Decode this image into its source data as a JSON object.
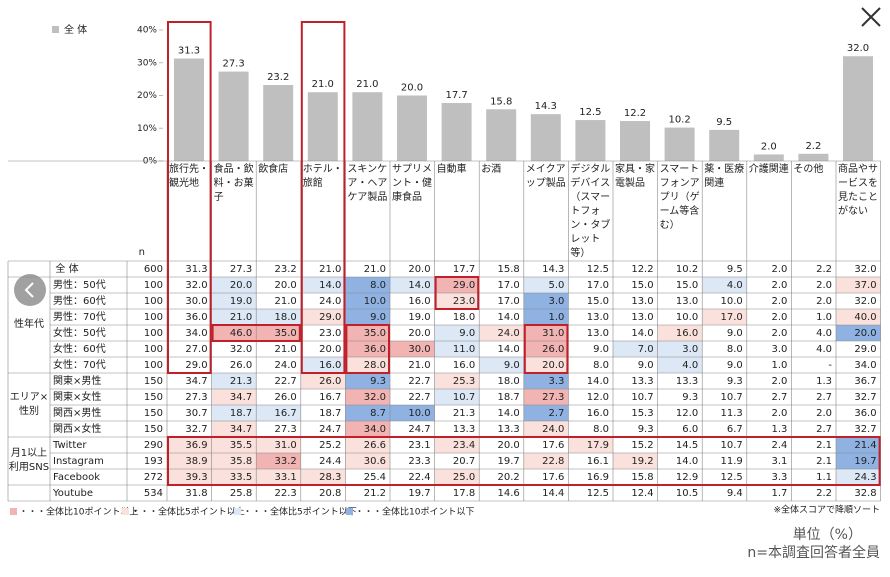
{
  "chart_data": {
    "type": "bar",
    "categories": [
      "旅行先・観光地",
      "食品・飲料・お菓子",
      "飲食店",
      "ホテル・旅館",
      "スキンケア・ヘアケア製品",
      "サプリメント・健康食品",
      "自動車",
      "お酒",
      "メイクアップ製品",
      "デジタルデバイス（スマートフォン・タブレット等）",
      "家具・家電製品",
      "スマートフォンアプリ（ゲーム等含む）",
      "薬・医療関連",
      "介護関連",
      "その他",
      "商品やサービスを見たことがない"
    ],
    "series": [
      {
        "name": "全 体",
        "color": "#bfbfbf",
        "values": [
          31.3,
          27.3,
          23.2,
          21,
          21,
          20,
          17.7,
          15.8,
          14.3,
          12.5,
          12.2,
          10.2,
          9.5,
          2,
          2.2,
          32
        ],
        "value_labels": [
          "31.3",
          "27.3",
          "23.2",
          "21.0",
          "21.0",
          "20.0",
          "17.7",
          "15.8",
          "14.3",
          "12.5",
          "12.2",
          "10.2",
          "9.5",
          "2.0",
          "2.2",
          "32.0"
        ]
      }
    ],
    "ylim": [
      0,
      40
    ],
    "yticks": [
      {
        "value": 0,
        "label": "0%"
      },
      {
        "value": 10,
        "label": "10%"
      },
      {
        "value": 20,
        "label": "20%"
      },
      {
        "value": 30,
        "label": "30%"
      },
      {
        "value": 40,
        "label": "40%"
      }
    ]
  },
  "table": {
    "n_header": "n",
    "total": {
      "label": "全 体",
      "n": 600,
      "values": [
        "31.3",
        "27.3",
        "23.2",
        "21.0",
        "21.0",
        "20.0",
        "17.7",
        "15.8",
        "14.3",
        "12.5",
        "12.2",
        "10.2",
        "9.5",
        "2.0",
        "2.2",
        "32.0"
      ]
    },
    "groups": [
      {
        "label": "性年代",
        "rows": [
          {
            "label": "男性：50代",
            "n": 100,
            "values": [
              "32.0",
              "20.0",
              "20.0",
              "14.0",
              "8.0",
              "14.0",
              "29.0",
              "17.0",
              "5.0",
              "17.0",
              "15.0",
              "15.0",
              "4.0",
              "2.0",
              "2.0",
              "37.0"
            ]
          },
          {
            "label": "男性：60代",
            "n": 100,
            "values": [
              "30.0",
              "19.0",
              "21.0",
              "24.0",
              "10.0",
              "16.0",
              "23.0",
              "17.0",
              "3.0",
              "15.0",
              "13.0",
              "13.0",
              "10.0",
              "2.0",
              "2.0",
              "32.0"
            ]
          },
          {
            "label": "男性：70代",
            "n": 100,
            "values": [
              "36.0",
              "21.0",
              "18.0",
              "29.0",
              "9.0",
              "19.0",
              "18.0",
              "14.0",
              "1.0",
              "13.0",
              "13.0",
              "10.0",
              "17.0",
              "2.0",
              "1.0",
              "40.0"
            ]
          },
          {
            "label": "女性：50代",
            "n": 100,
            "values": [
              "34.0",
              "46.0",
              "35.0",
              "23.0",
              "35.0",
              "20.0",
              "9.0",
              "24.0",
              "31.0",
              "13.0",
              "14.0",
              "16.0",
              "9.0",
              "2.0",
              "4.0",
              "20.0"
            ]
          },
          {
            "label": "女性：60代",
            "n": 100,
            "values": [
              "27.0",
              "32.0",
              "21.0",
              "20.0",
              "36.0",
              "30.0",
              "11.0",
              "14.0",
              "26.0",
              "9.0",
              "7.0",
              "3.0",
              "8.0",
              "3.0",
              "4.0",
              "29.0"
            ]
          },
          {
            "label": "女性：70代",
            "n": 100,
            "values": [
              "29.0",
              "26.0",
              "24.0",
              "16.0",
              "28.0",
              "21.0",
              "16.0",
              "9.0",
              "20.0",
              "8.0",
              "9.0",
              "4.0",
              "9.0",
              "1.0",
              "-",
              "34.0"
            ]
          }
        ]
      },
      {
        "label": "エリア×性別",
        "rows": [
          {
            "label": "関東×男性",
            "n": 150,
            "values": [
              "34.7",
              "21.3",
              "22.7",
              "26.0",
              "9.3",
              "22.7",
              "25.3",
              "18.0",
              "3.3",
              "14.0",
              "13.3",
              "13.3",
              "9.3",
              "2.0",
              "1.3",
              "36.7"
            ]
          },
          {
            "label": "関東×女性",
            "n": 150,
            "values": [
              "27.3",
              "34.7",
              "26.0",
              "16.7",
              "32.0",
              "22.7",
              "10.7",
              "18.7",
              "27.3",
              "12.0",
              "10.7",
              "9.3",
              "10.7",
              "2.7",
              "2.7",
              "32.7"
            ]
          },
          {
            "label": "関西×男性",
            "n": 150,
            "values": [
              "30.7",
              "18.7",
              "16.7",
              "18.7",
              "8.7",
              "10.0",
              "21.3",
              "14.0",
              "2.7",
              "16.0",
              "15.3",
              "12.0",
              "11.3",
              "2.0",
              "2.0",
              "36.0"
            ]
          },
          {
            "label": "関西×女性",
            "n": 150,
            "values": [
              "32.7",
              "34.7",
              "27.3",
              "24.7",
              "34.0",
              "24.7",
              "13.3",
              "13.3",
              "24.0",
              "8.0",
              "9.3",
              "6.0",
              "6.7",
              "1.3",
              "2.7",
              "32.7"
            ]
          }
        ]
      },
      {
        "label": "月1以上利用SNS",
        "rows": [
          {
            "label": "Twitter",
            "n": 290,
            "values": [
              "36.9",
              "35.5",
              "31.0",
              "25.2",
              "26.6",
              "23.1",
              "23.4",
              "20.0",
              "17.6",
              "17.9",
              "15.2",
              "14.5",
              "10.7",
              "2.4",
              "2.1",
              "21.4"
            ]
          },
          {
            "label": "Instagram",
            "n": 193,
            "values": [
              "38.9",
              "35.8",
              "33.2",
              "24.4",
              "30.6",
              "23.3",
              "20.7",
              "19.7",
              "22.8",
              "16.1",
              "19.2",
              "14.0",
              "11.9",
              "3.1",
              "2.1",
              "19.7"
            ]
          },
          {
            "label": "Facebook",
            "n": 272,
            "values": [
              "39.3",
              "33.5",
              "33.1",
              "28.3",
              "25.4",
              "22.4",
              "25.0",
              "20.2",
              "17.6",
              "16.9",
              "15.8",
              "12.9",
              "12.5",
              "3.3",
              "1.1",
              "24.3"
            ]
          }
        ]
      }
    ],
    "extra_rows": [
      {
        "label": "Youtube",
        "n": 534,
        "values": [
          "31.8",
          "25.8",
          "22.3",
          "20.8",
          "21.2",
          "19.7",
          "17.8",
          "14.6",
          "14.4",
          "12.5",
          "12.4",
          "10.5",
          "9.4",
          "1.7",
          "2.2",
          "32.8"
        ]
      }
    ]
  },
  "footer": {
    "shade_legend": [
      {
        "label": "・・・全体比10ポイント以上",
        "color": "#f2b3b3",
        "threshold": 10
      },
      {
        "label": "・・・全体比5ポイント以上",
        "color": "#fbe1dc",
        "threshold": 5
      },
      {
        "label": "・・・全体比5ポイント以下",
        "color": "#dce8f6",
        "threshold": -5
      },
      {
        "label": "・・・全体比10ポイント以下",
        "color": "#8fb2e3",
        "threshold": -10
      }
    ],
    "note": "※全体スコアで降順ソート",
    "unit": "単位（%）",
    "n_note": "n=本調査回答者全員"
  }
}
